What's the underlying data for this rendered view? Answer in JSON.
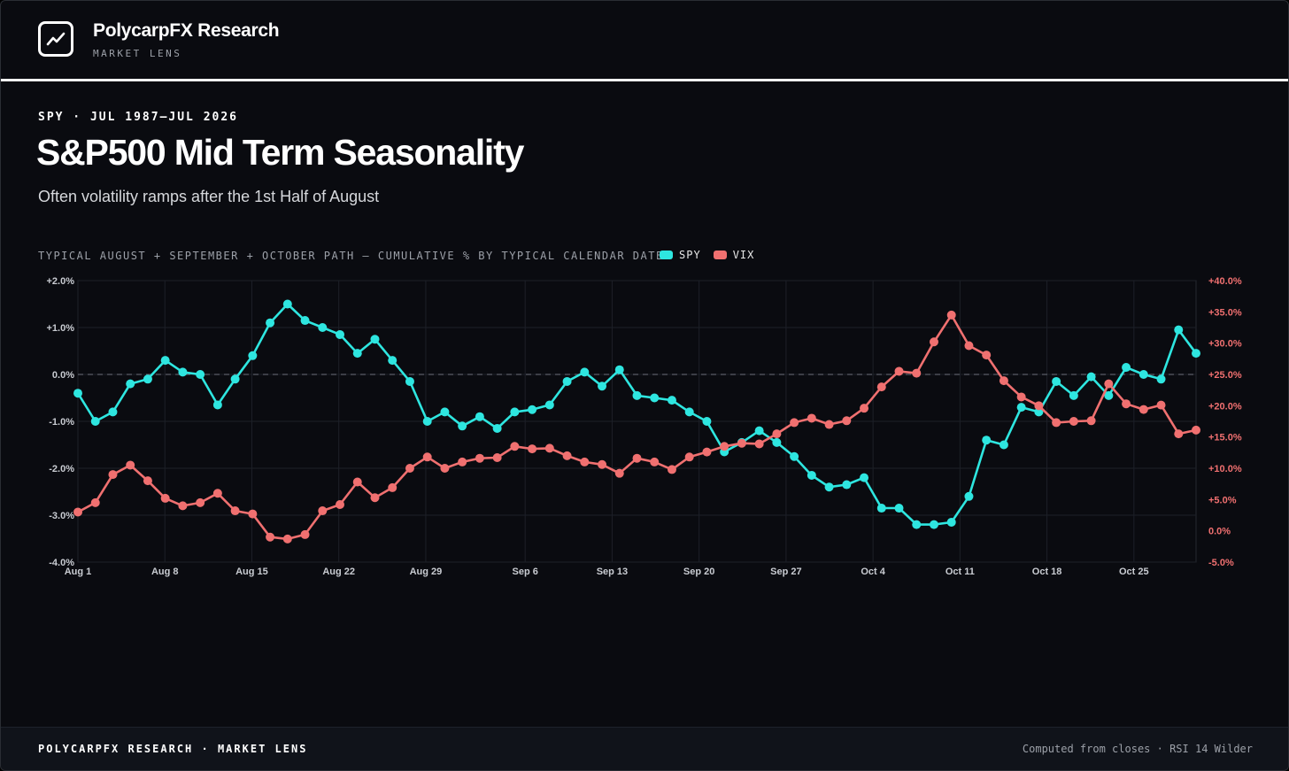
{
  "header": {
    "brand": "PolycarpFX Research",
    "sub": "MARKET LENS",
    "logo_icon": "trending-chart-icon"
  },
  "kicker": "SPY · JUL 1987–JUL 2026",
  "title": "S&P500 Mid Term Seasonality",
  "subtitle": "Often volatility ramps after the 1st Half of August",
  "chart_caption": "TYPICAL AUGUST + SEPTEMBER + OCTOBER PATH — CUMULATIVE % BY TYPICAL CALENDAR DATE",
  "footer": {
    "left": "POLYCARPFX RESEARCH · MARKET LENS",
    "right": "Computed from closes · RSI 14 Wilder"
  },
  "colors": {
    "spy": "#2ee6e0",
    "vix": "#f07070",
    "background": "#0a0b10"
  },
  "chart_data": {
    "type": "line",
    "x": [
      "Aug 1",
      "Aug 2",
      "Aug 3",
      "Aug 4",
      "Aug 5",
      "Aug 6",
      "Aug 7",
      "Aug 8",
      "Aug 9",
      "Aug 10",
      "Aug 11",
      "Aug 12",
      "Aug 13",
      "Aug 14",
      "Aug 15",
      "Aug 16",
      "Aug 17",
      "Aug 18",
      "Aug 19",
      "Aug 20",
      "Aug 21",
      "Aug 22",
      "Aug 23",
      "Aug 24",
      "Aug 25",
      "Aug 26",
      "Aug 27",
      "Aug 28",
      "Aug 29",
      "Aug 30",
      "Aug 31",
      "Sep 1",
      "Sep 2",
      "Sep 3",
      "Sep 4",
      "Sep 5",
      "Sep 6",
      "Sep 7",
      "Sep 8",
      "Sep 9",
      "Sep 10",
      "Sep 11",
      "Sep 12",
      "Sep 13",
      "Sep 14",
      "Sep 15",
      "Sep 16",
      "Sep 17",
      "Sep 18",
      "Sep 19",
      "Sep 20",
      "Sep 21",
      "Sep 22",
      "Sep 23",
      "Sep 24",
      "Sep 25",
      "Sep 26",
      "Sep 27",
      "Sep 28",
      "Sep 29",
      "Sep 30",
      "Oct 1",
      "Oct 2",
      "Oct 3",
      "Oct 4",
      "Oct 5",
      "Oct 6",
      "Oct 7",
      "Oct 8",
      "Oct 9",
      "Oct 10",
      "Oct 11",
      "Oct 12",
      "Oct 13",
      "Oct 14",
      "Oct 15",
      "Oct 16",
      "Oct 17",
      "Oct 18",
      "Oct 19",
      "Oct 20",
      "Oct 21",
      "Oct 22",
      "Oct 23",
      "Oct 24",
      "Oct 25",
      "Oct 26",
      "Oct 27",
      "Oct 28",
      "Oct 29",
      "Oct 30"
    ],
    "x_tick_labels": [
      "Aug 1",
      "Aug 8",
      "Aug 15",
      "Aug 22",
      "Aug 29",
      "Sep 6",
      "Sep 13",
      "Sep 20",
      "Sep 27",
      "Oct 4",
      "Oct 11",
      "Oct 18",
      "Oct 25"
    ],
    "y_left": {
      "min": -4,
      "max": 2,
      "ticks": [
        "+2.0%",
        "+1.0%",
        "0.0%",
        "-1.0%",
        "-2.0%",
        "-3.0%",
        "-4.0%"
      ],
      "tick_values": [
        2,
        1,
        0,
        -1,
        -2,
        -3,
        -4
      ]
    },
    "y_right": {
      "min": -5,
      "max": 40,
      "ticks": [
        "+40.0%",
        "+35.0%",
        "+30.0%",
        "+25.0%",
        "+20.0%",
        "+15.0%",
        "+10.0%",
        "+5.0%",
        "0.0%",
        "-5.0%"
      ],
      "tick_values": [
        40,
        35,
        30,
        25,
        20,
        15,
        10,
        5,
        0,
        -5
      ]
    },
    "zero_line": true,
    "grid": true,
    "series": [
      {
        "name": "SPY",
        "axis": "left",
        "points": [
          {
            "x": "Aug 1",
            "y": -0.4
          },
          {
            "x": "Aug 2",
            "y": -1.0
          },
          {
            "x": "Aug 3",
            "y": -0.8
          },
          {
            "x": "Aug 4",
            "y": -0.2
          },
          {
            "x": "Aug 5",
            "y": -0.1
          },
          {
            "x": "Aug 6",
            "y": 0.3
          },
          {
            "x": "Aug 7",
            "y": 0.05
          },
          {
            "x": "Aug 8",
            "y": 0.0
          },
          {
            "x": "Aug 9",
            "y": -0.65
          },
          {
            "x": "Aug 10",
            "y": -0.1
          },
          {
            "x": "Aug 11",
            "y": 0.4
          },
          {
            "x": "Aug 12",
            "y": 1.1
          },
          {
            "x": "Aug 13",
            "y": 1.5
          },
          {
            "x": "Aug 14",
            "y": 1.15
          },
          {
            "x": "Aug 15",
            "y": 1.0
          },
          {
            "x": "Aug 16",
            "y": 0.85
          },
          {
            "x": "Aug 17",
            "y": 0.45
          },
          {
            "x": "Aug 18",
            "y": 0.75
          },
          {
            "x": "Aug 19",
            "y": 0.3
          },
          {
            "x": "Aug 20",
            "y": -0.15
          },
          {
            "x": "Aug 21",
            "y": -1.0
          },
          {
            "x": "Aug 22",
            "y": -0.8
          },
          {
            "x": "Aug 23",
            "y": -1.1
          },
          {
            "x": "Aug 24",
            "y": -0.9
          },
          {
            "x": "Aug 25",
            "y": -1.15
          },
          {
            "x": "Aug 26",
            "y": -0.8
          },
          {
            "x": "Aug 27",
            "y": -0.75
          },
          {
            "x": "Aug 28",
            "y": -0.65
          },
          {
            "x": "Aug 29",
            "y": -0.15
          },
          {
            "x": "Aug 30",
            "y": 0.05
          },
          {
            "x": "Aug 31",
            "y": -0.25
          },
          {
            "x": "Sep 1",
            "y": 0.1
          },
          {
            "x": "Sep 2",
            "y": -0.45
          },
          {
            "x": "Sep 3",
            "y": -0.5
          },
          {
            "x": "Sep 4",
            "y": -0.55
          },
          {
            "x": "Sep 5",
            "y": -0.8
          },
          {
            "x": "Sep 6",
            "y": -1.0
          },
          {
            "x": "Sep 7",
            "y": -1.65
          },
          {
            "x": "Sep 8",
            "y": -1.45
          },
          {
            "x": "Sep 9",
            "y": -1.2
          },
          {
            "x": "Sep 10",
            "y": -1.45
          },
          {
            "x": "Sep 11",
            "y": -1.75
          },
          {
            "x": "Sep 12",
            "y": -2.15
          },
          {
            "x": "Sep 13",
            "y": -2.4
          },
          {
            "x": "Sep 14",
            "y": -2.35
          },
          {
            "x": "Sep 15",
            "y": -2.2
          },
          {
            "x": "Sep 16",
            "y": -2.85
          },
          {
            "x": "Sep 17",
            "y": -2.85
          },
          {
            "x": "Sep 18",
            "y": -3.2
          },
          {
            "x": "Sep 19",
            "y": -3.2
          },
          {
            "x": "Sep 20",
            "y": -3.15
          },
          {
            "x": "Sep 21",
            "y": -2.6
          },
          {
            "x": "Sep 22",
            "y": -1.4
          },
          {
            "x": "Sep 23",
            "y": -1.5
          },
          {
            "x": "Sep 24",
            "y": -0.7
          },
          {
            "x": "Sep 25",
            "y": -0.8
          },
          {
            "x": "Sep 26",
            "y": -0.15
          },
          {
            "x": "Sep 27",
            "y": -0.45
          },
          {
            "x": "Sep 28",
            "y": -0.05
          },
          {
            "x": "Sep 29",
            "y": -0.45
          },
          {
            "x": "Sep 30",
            "y": 0.15
          },
          {
            "x": "Oct 1",
            "y": 0.0
          },
          {
            "x": "Oct 2",
            "y": -0.1
          },
          {
            "x": "Oct 3",
            "y": 0.95
          },
          {
            "x": "Oct 4",
            "y": 0.45
          }
        ]
      },
      {
        "name": "VIX",
        "axis": "right",
        "points": [
          {
            "x": "Aug 1",
            "y": 3.0
          },
          {
            "x": "Aug 2",
            "y": 4.5
          },
          {
            "x": "Aug 3",
            "y": 9.0
          },
          {
            "x": "Aug 4",
            "y": 10.5
          },
          {
            "x": "Aug 5",
            "y": 8.0
          },
          {
            "x": "Aug 6",
            "y": 5.2
          },
          {
            "x": "Aug 7",
            "y": 4.0
          },
          {
            "x": "Aug 8",
            "y": 4.5
          },
          {
            "x": "Aug 9",
            "y": 6.0
          },
          {
            "x": "Aug 10",
            "y": 3.2
          },
          {
            "x": "Aug 11",
            "y": 2.7
          },
          {
            "x": "Aug 12",
            "y": -1.0
          },
          {
            "x": "Aug 13",
            "y": -1.3
          },
          {
            "x": "Aug 14",
            "y": -0.6
          },
          {
            "x": "Aug 15",
            "y": 3.2
          },
          {
            "x": "Aug 16",
            "y": 4.2
          },
          {
            "x": "Aug 17",
            "y": 7.8
          },
          {
            "x": "Aug 18",
            "y": 5.3
          },
          {
            "x": "Aug 19",
            "y": 6.9
          },
          {
            "x": "Aug 20",
            "y": 10.0
          },
          {
            "x": "Aug 21",
            "y": 11.8
          },
          {
            "x": "Aug 22",
            "y": 10.0
          },
          {
            "x": "Aug 23",
            "y": 11.0
          },
          {
            "x": "Aug 24",
            "y": 11.6
          },
          {
            "x": "Aug 25",
            "y": 11.7
          },
          {
            "x": "Aug 26",
            "y": 13.5
          },
          {
            "x": "Aug 27",
            "y": 13.1
          },
          {
            "x": "Aug 28",
            "y": 13.2
          },
          {
            "x": "Aug 29",
            "y": 12.0
          },
          {
            "x": "Aug 30",
            "y": 11.0
          },
          {
            "x": "Aug 31",
            "y": 10.6
          },
          {
            "x": "Sep 1",
            "y": 9.2
          },
          {
            "x": "Sep 2",
            "y": 11.6
          },
          {
            "x": "Sep 3",
            "y": 11.0
          },
          {
            "x": "Sep 4",
            "y": 9.8
          },
          {
            "x": "Sep 5",
            "y": 11.8
          },
          {
            "x": "Sep 6",
            "y": 12.6
          },
          {
            "x": "Sep 7",
            "y": 13.5
          },
          {
            "x": "Sep 8",
            "y": 14.0
          },
          {
            "x": "Sep 9",
            "y": 13.9
          },
          {
            "x": "Sep 10",
            "y": 15.5
          },
          {
            "x": "Sep 11",
            "y": 17.3
          },
          {
            "x": "Sep 12",
            "y": 18.0
          },
          {
            "x": "Sep 13",
            "y": 17.0
          },
          {
            "x": "Sep 14",
            "y": 17.6
          },
          {
            "x": "Sep 15",
            "y": 19.6
          },
          {
            "x": "Sep 16",
            "y": 23.0
          },
          {
            "x": "Sep 17",
            "y": 25.5
          },
          {
            "x": "Sep 18",
            "y": 25.2
          },
          {
            "x": "Sep 19",
            "y": 30.2
          },
          {
            "x": "Sep 20",
            "y": 34.5
          },
          {
            "x": "Sep 21",
            "y": 29.6
          },
          {
            "x": "Sep 22",
            "y": 28.1
          },
          {
            "x": "Sep 23",
            "y": 24.0
          },
          {
            "x": "Sep 24",
            "y": 21.4
          },
          {
            "x": "Sep 25",
            "y": 20.0
          },
          {
            "x": "Sep 26",
            "y": 17.3
          },
          {
            "x": "Sep 27",
            "y": 17.5
          },
          {
            "x": "Sep 28",
            "y": 17.6
          },
          {
            "x": "Sep 29",
            "y": 23.5
          },
          {
            "x": "Sep 30",
            "y": 20.3
          },
          {
            "x": "Oct 1",
            "y": 19.4
          },
          {
            "x": "Oct 2",
            "y": 20.1
          },
          {
            "x": "Oct 3",
            "y": 15.5
          },
          {
            "x": "Oct 4",
            "y": 16.1
          }
        ]
      }
    ]
  }
}
